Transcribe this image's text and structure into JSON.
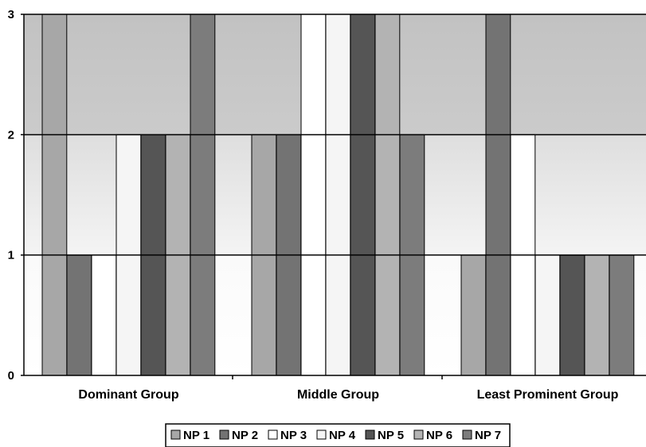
{
  "chart_data": {
    "type": "bar",
    "title": "",
    "xlabel": "",
    "ylabel": "",
    "ylim": [
      0,
      3
    ],
    "yticks": [
      "0",
      "1",
      "2",
      "3"
    ],
    "categories": [
      "Dominant Group",
      "Middle Group",
      "Least Prominent Group"
    ],
    "series": [
      {
        "name": "NP 1",
        "color": "#a7a7a7",
        "values": [
          3,
          2,
          1
        ]
      },
      {
        "name": "NP 2",
        "color": "#737373",
        "values": [
          1,
          2,
          3
        ]
      },
      {
        "name": "NP 3",
        "color": "#ffffff",
        "values": [
          1,
          3,
          2
        ]
      },
      {
        "name": "NP 4",
        "color": "#f5f5f5",
        "values": [
          2,
          3,
          1
        ]
      },
      {
        "name": "NP 5",
        "color": "#555555",
        "values": [
          2,
          3,
          1
        ]
      },
      {
        "name": "NP 6",
        "color": "#b3b3b3",
        "values": [
          2,
          3,
          1
        ]
      },
      {
        "name": "NP 7",
        "color": "#7c7c7c",
        "values": [
          3,
          2,
          1
        ]
      }
    ],
    "grid": true,
    "legend": "bottom",
    "background_bands": [
      "#ffffff",
      "#e6e6e6",
      "#c4c4c4"
    ]
  }
}
